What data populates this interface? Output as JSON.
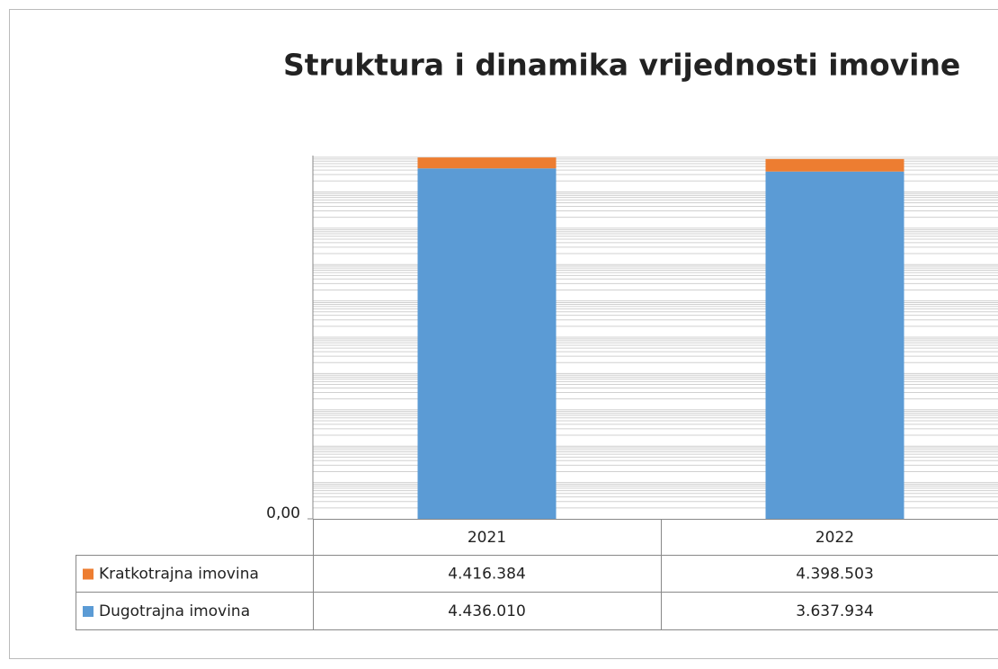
{
  "chart_data": {
    "type": "stacked_bar",
    "title": "Struktura i dinamika vrijednosti imovine",
    "categories": [
      "2021",
      "2022"
    ],
    "series": [
      {
        "name": "Dugotrajna imovina",
        "color": "#5b9bd5",
        "values": [
          4436010,
          3637934
        ],
        "value_labels": [
          "4.436.010",
          "3.637.934"
        ]
      },
      {
        "name": "Kratkotrajna imovina",
        "color": "#ed7d31",
        "values": [
          4416384,
          4398503
        ],
        "value_labels": [
          "4.416.384",
          "4.398.503"
        ]
      }
    ],
    "log_scale": true,
    "grid": true,
    "data_table": true,
    "ylim": [
      0.001,
      10000000
    ],
    "yticks": [
      {
        "value": 0.001,
        "label": "0,00"
      }
    ]
  }
}
